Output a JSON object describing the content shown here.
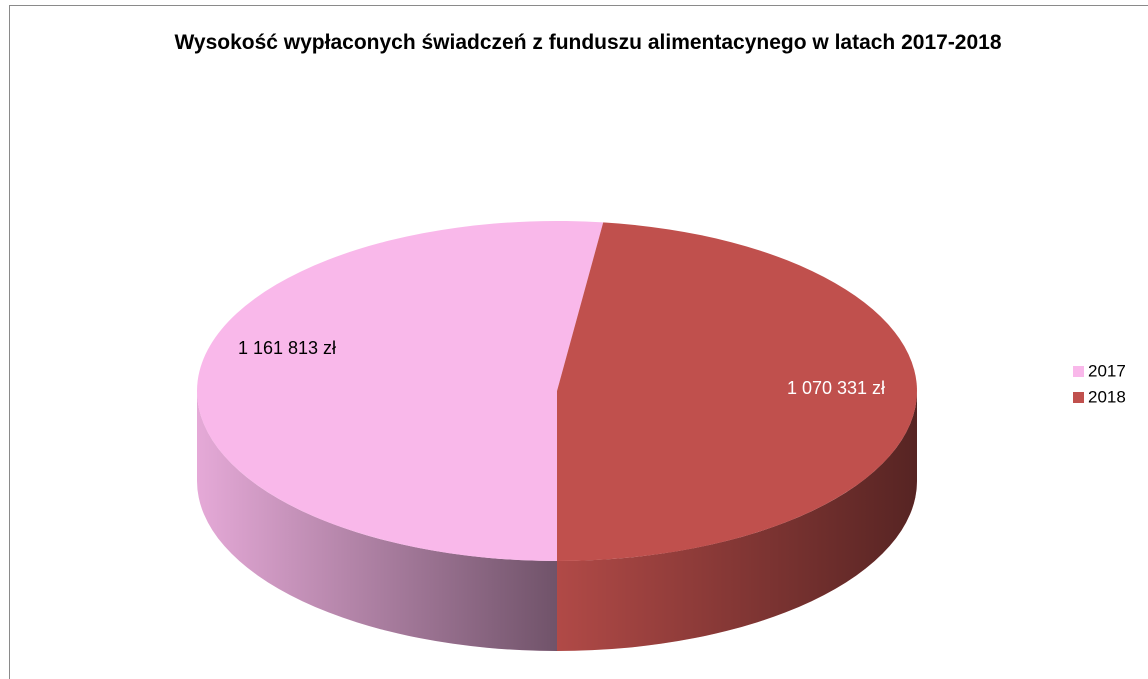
{
  "chart_data": {
    "type": "pie",
    "title": "Wysokość wypłaconych świadczeń z funduszu alimentacynego w latach 2017-2018",
    "categories": [
      "2017",
      "2018"
    ],
    "values": [
      1161813,
      1070331
    ],
    "value_labels": [
      "1 161 813 zł",
      "1 070 331 zł"
    ],
    "colors": [
      "#f9b8ea",
      "#c0504d"
    ],
    "legend": "right"
  }
}
